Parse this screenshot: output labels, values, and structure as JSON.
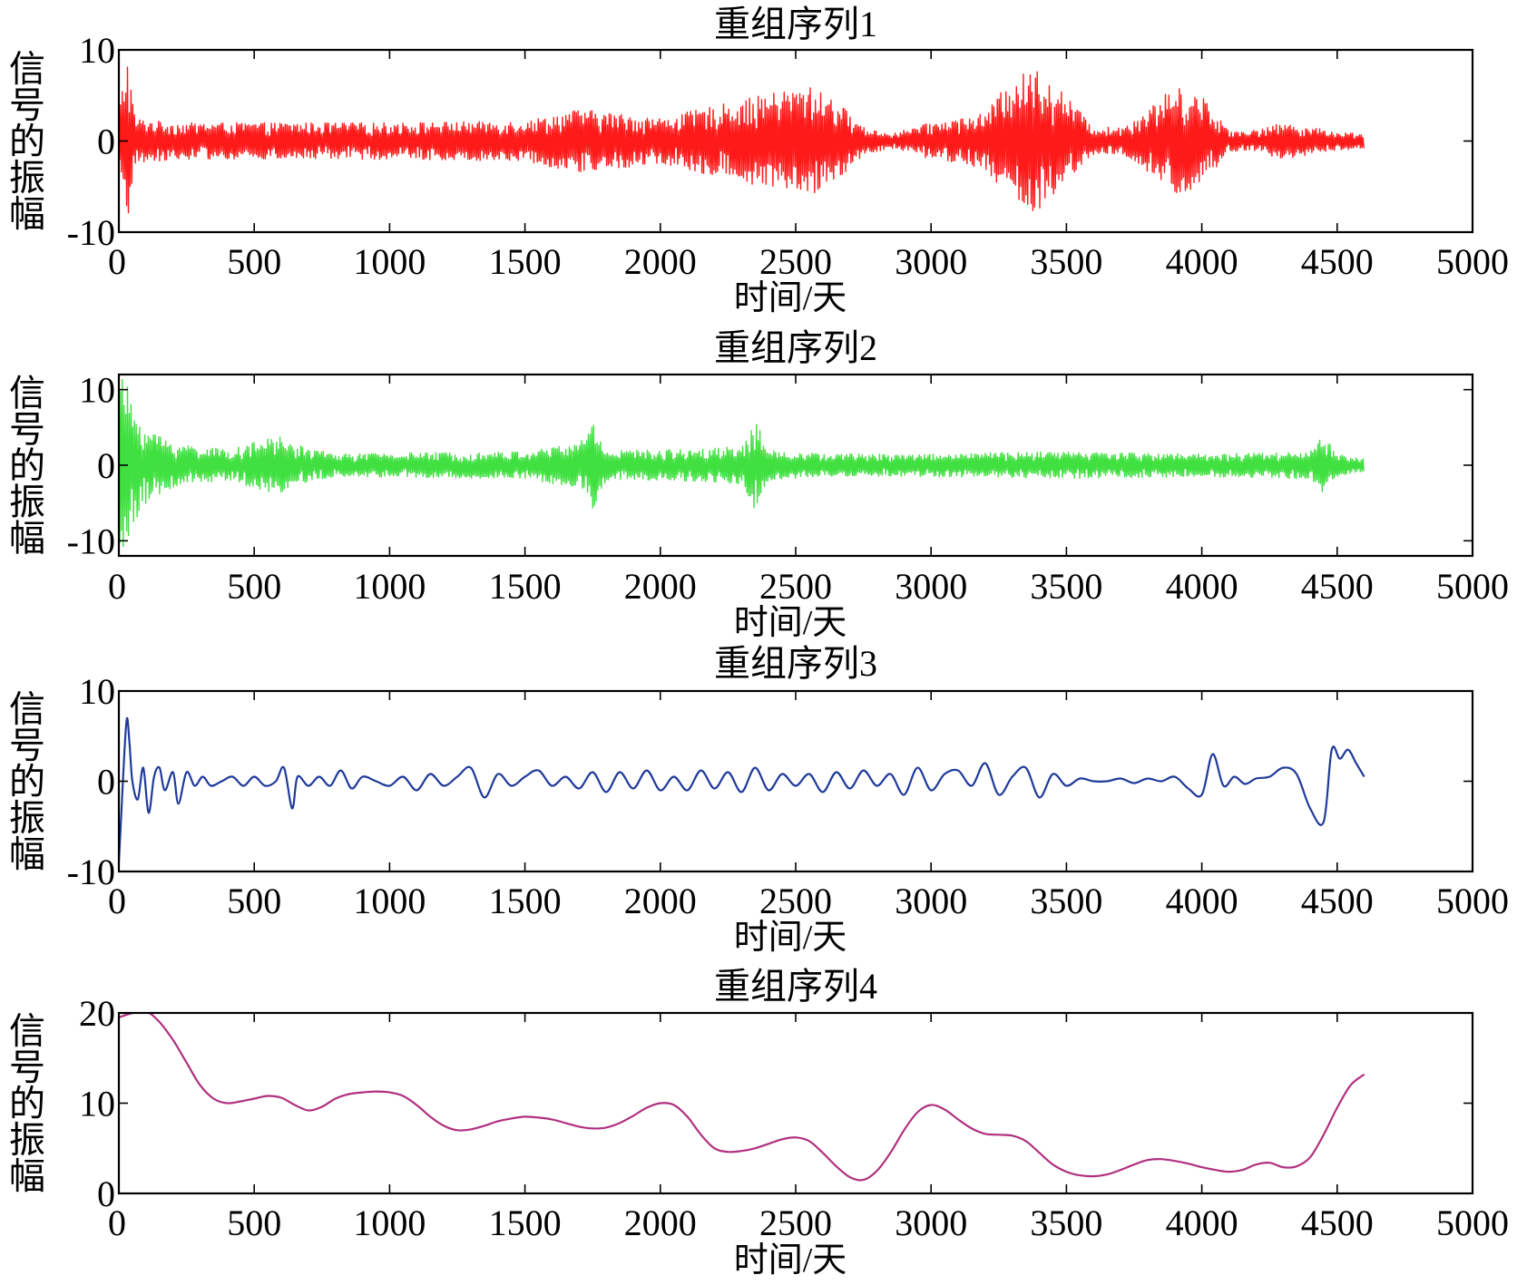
{
  "x_axis_label": "时间/天",
  "y_axis_label": "信号的振幅",
  "chart_data": [
    {
      "type": "line",
      "title": "重组序列1",
      "xlabel": "时间/天",
      "ylabel": "信号的振幅",
      "xlim": [
        0,
        5000
      ],
      "ylim": [
        -10,
        10
      ],
      "x_ticks": [
        0,
        500,
        1000,
        1500,
        2000,
        2500,
        3000,
        3500,
        4000,
        4500,
        5000
      ],
      "y_ticks": [
        -10,
        0,
        10
      ],
      "x_tick_labels": [
        "0",
        "500",
        "1000",
        "1500",
        "2000",
        "2500",
        "3000",
        "3500",
        "4000",
        "4500",
        "5000"
      ],
      "y_tick_labels": [
        "-10",
        "0",
        "10"
      ],
      "grid": false,
      "color": "#ff1a1a",
      "series": [
        {
          "style": "high-frequency oscillation",
          "x_range": [
            0,
            4600
          ],
          "envelope": {
            "x": [
              0,
              30,
              60,
              200,
              500,
              1000,
              1500,
              1700,
              2000,
              2300,
              2450,
              2550,
              2650,
              2750,
              2850,
              3000,
              3200,
              3300,
              3400,
              3500,
              3600,
              3700,
              3800,
              3900,
              4000,
              4100,
              4200,
              4300,
              4400,
              4500,
              4600
            ],
            "amplitude": [
              3,
              10,
              2.5,
              2,
              2,
              2,
              2.2,
              3.5,
              2.5,
              4.5,
              5.5,
              6,
              4.5,
              1.5,
              0.8,
              2,
              3,
              7,
              8,
              5,
              1.5,
              1.5,
              3.5,
              6,
              5,
              1.2,
              1.2,
              2,
              1.5,
              1,
              0.8
            ]
          }
        }
      ]
    },
    {
      "type": "line",
      "title": "重组序列2",
      "xlabel": "时间/天",
      "ylabel": "信号的振幅",
      "xlim": [
        0,
        5000
      ],
      "ylim": [
        -12,
        12
      ],
      "x_ticks": [
        0,
        500,
        1000,
        1500,
        2000,
        2500,
        3000,
        3500,
        4000,
        4500,
        5000
      ],
      "y_ticks": [
        -10,
        0,
        10
      ],
      "x_tick_labels": [
        "0",
        "500",
        "1000",
        "1500",
        "2000",
        "2500",
        "3000",
        "3500",
        "4000",
        "4500",
        "5000"
      ],
      "y_tick_labels": [
        "-10",
        "0",
        "10"
      ],
      "grid": false,
      "color": "#40e040",
      "series": [
        {
          "style": "oscillation",
          "x_range": [
            0,
            4600
          ],
          "envelope": {
            "x": [
              0,
              20,
              50,
              100,
              200,
              400,
              600,
              620,
              800,
              1500,
              1700,
              1750,
              1800,
              2000,
              2300,
              2350,
              2400,
              2600,
              3000,
              3500,
              4000,
              4400,
              4450,
              4500,
              4600
            ],
            "amplitude": [
              11,
              12,
              8,
              5,
              3,
              2,
              4,
              3,
              1.5,
              1.8,
              3,
              6,
              2,
              2,
              2.5,
              6,
              2,
              1.5,
              1.5,
              1.8,
              1.5,
              1.8,
              4,
              1.5,
              0.8
            ]
          }
        }
      ]
    },
    {
      "type": "line",
      "title": "重组序列3",
      "xlabel": "时间/天",
      "ylabel": "信号的振幅",
      "xlim": [
        0,
        5000
      ],
      "ylim": [
        -10,
        10
      ],
      "x_ticks": [
        0,
        500,
        1000,
        1500,
        2000,
        2500,
        3000,
        3500,
        4000,
        4500,
        5000
      ],
      "y_ticks": [
        -10,
        0,
        10
      ],
      "x_tick_labels": [
        "0",
        "500",
        "1000",
        "1500",
        "2000",
        "2500",
        "3000",
        "3500",
        "4000",
        "4500",
        "5000"
      ],
      "y_tick_labels": [
        "-10",
        "0",
        "10"
      ],
      "grid": false,
      "color": "#1f3a9a",
      "series": [
        {
          "x": [
            0,
            10,
            20,
            30,
            40,
            50,
            70,
            90,
            110,
            130,
            150,
            170,
            200,
            220,
            250,
            280,
            310,
            340,
            380,
            420,
            460,
            500,
            540,
            580,
            610,
            640,
            660,
            700,
            740,
            780,
            820,
            860,
            900,
            950,
            1000,
            1050,
            1100,
            1150,
            1200,
            1250,
            1300,
            1350,
            1400,
            1450,
            1500,
            1550,
            1600,
            1650,
            1700,
            1750,
            1800,
            1850,
            1900,
            1950,
            2000,
            2050,
            2100,
            2150,
            2200,
            2250,
            2300,
            2350,
            2400,
            2450,
            2500,
            2550,
            2600,
            2650,
            2700,
            2750,
            2800,
            2850,
            2900,
            2950,
            3000,
            3050,
            3100,
            3150,
            3200,
            3250,
            3300,
            3350,
            3400,
            3450,
            3500,
            3550,
            3600,
            3650,
            3700,
            3750,
            3800,
            3850,
            3900,
            3950,
            4000,
            4040,
            4080,
            4120,
            4160,
            4200,
            4250,
            4300,
            4350,
            4400,
            4450,
            4480,
            4510,
            4540,
            4570,
            4600
          ],
          "y": [
            -9,
            -3,
            3,
            7,
            4,
            0,
            -2,
            1.5,
            -3.5,
            0.5,
            1.5,
            -1,
            1,
            -2.5,
            1,
            -0.5,
            0.5,
            -0.5,
            0,
            0.5,
            -0.5,
            0.5,
            -0.5,
            0,
            1.5,
            -3,
            0.5,
            -0.5,
            0.5,
            -0.5,
            1.2,
            -0.8,
            0.5,
            0,
            -0.5,
            0.5,
            -1,
            0.8,
            -0.5,
            0.5,
            1.5,
            -1.8,
            0.8,
            -0.5,
            0.5,
            1.2,
            -0.5,
            0.5,
            -0.8,
            1.0,
            -1.2,
            1.0,
            -0.8,
            1.2,
            -1.0,
            0.5,
            -1.0,
            1.2,
            -0.8,
            1.0,
            -1.2,
            1.5,
            -1.0,
            0.8,
            -0.5,
            0.8,
            -1.2,
            1.0,
            -0.8,
            1.2,
            -0.5,
            0.8,
            -1.5,
            1.5,
            -1.0,
            0.8,
            1.2,
            -0.5,
            2.0,
            -1.5,
            0.5,
            1.5,
            -1.8,
            0.8,
            -0.5,
            0.3,
            0,
            0,
            0.3,
            -0.2,
            0.3,
            0,
            0.5,
            -0.8,
            -1.5,
            3.0,
            -0.5,
            0.5,
            -0.3,
            0.3,
            0.5,
            1.5,
            0.8,
            -3.0,
            -4.5,
            3.5,
            2.5,
            3.5,
            2.0,
            0.5
          ]
        }
      ]
    },
    {
      "type": "line",
      "title": "重组序列4",
      "xlabel": "时间/天",
      "ylabel": "信号的振幅",
      "xlim": [
        0,
        5000
      ],
      "ylim": [
        0,
        20
      ],
      "x_ticks": [
        0,
        500,
        1000,
        1500,
        2000,
        2500,
        3000,
        3500,
        4000,
        4500,
        5000
      ],
      "y_ticks": [
        0,
        10,
        20
      ],
      "x_tick_labels": [
        "0",
        "500",
        "1000",
        "1500",
        "2000",
        "2500",
        "3000",
        "3500",
        "4000",
        "4500",
        "5000"
      ],
      "y_tick_labels": [
        "0",
        "10",
        "20"
      ],
      "grid": false,
      "color": "#b03080",
      "series": [
        {
          "x": [
            0,
            50,
            100,
            150,
            200,
            250,
            300,
            350,
            400,
            450,
            500,
            550,
            600,
            650,
            700,
            750,
            800,
            850,
            900,
            950,
            1000,
            1050,
            1100,
            1150,
            1200,
            1250,
            1300,
            1350,
            1400,
            1450,
            1500,
            1550,
            1600,
            1650,
            1700,
            1750,
            1800,
            1850,
            1900,
            1950,
            2000,
            2050,
            2100,
            2150,
            2200,
            2250,
            2300,
            2350,
            2400,
            2450,
            2500,
            2550,
            2600,
            2650,
            2700,
            2750,
            2800,
            2850,
            2900,
            2950,
            3000,
            3050,
            3100,
            3150,
            3200,
            3250,
            3300,
            3350,
            3400,
            3450,
            3500,
            3550,
            3600,
            3650,
            3700,
            3750,
            3800,
            3850,
            3900,
            3950,
            4000,
            4050,
            4100,
            4150,
            4200,
            4250,
            4300,
            4350,
            4400,
            4450,
            4500,
            4550,
            4600
          ],
          "y": [
            19.5,
            20,
            20.2,
            19,
            17,
            14.5,
            12,
            10.5,
            10,
            10.2,
            10.5,
            10.8,
            10.6,
            9.8,
            9.2,
            9.6,
            10.5,
            11,
            11.2,
            11.3,
            11.2,
            10.8,
            9.8,
            8.5,
            7.5,
            7,
            7.1,
            7.5,
            8,
            8.3,
            8.5,
            8.4,
            8.2,
            7.8,
            7.4,
            7.2,
            7.3,
            7.8,
            8.6,
            9.5,
            10,
            9.8,
            8.5,
            6.5,
            5,
            4.6,
            4.7,
            5,
            5.5,
            6,
            6.2,
            5.8,
            4.5,
            3,
            1.8,
            1.5,
            2.5,
            4.5,
            7,
            9,
            9.8,
            9.3,
            8.2,
            7.2,
            6.6,
            6.5,
            6.4,
            5.8,
            4.5,
            3.2,
            2.4,
            2,
            1.9,
            2.1,
            2.6,
            3.2,
            3.7,
            3.8,
            3.6,
            3.3,
            2.9,
            2.6,
            2.4,
            2.6,
            3.2,
            3.4,
            2.9,
            3,
            4,
            6.5,
            9.5,
            12,
            13.2
          ]
        }
      ]
    }
  ]
}
